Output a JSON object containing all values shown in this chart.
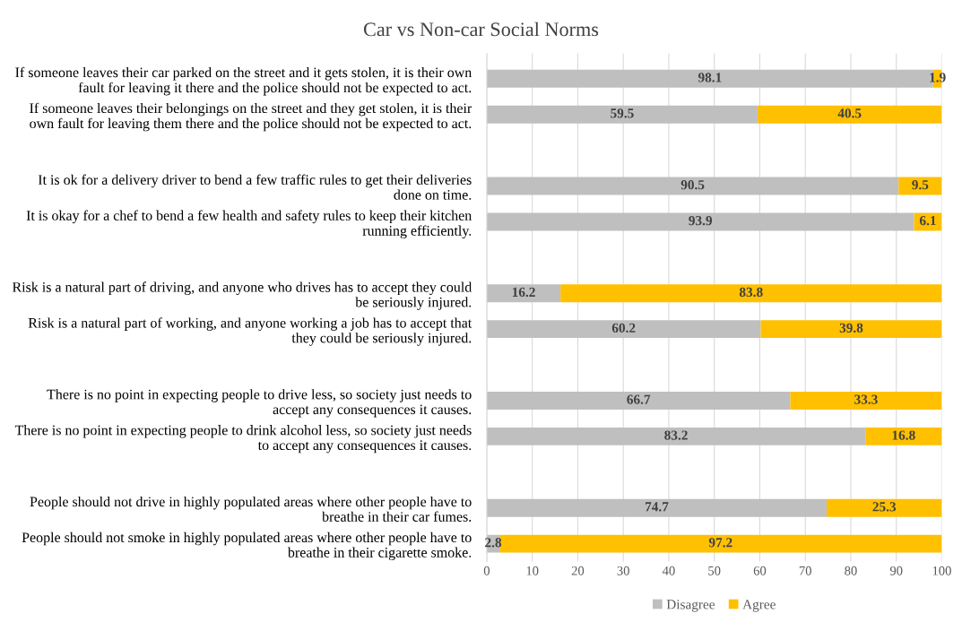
{
  "chart_data": {
    "type": "bar",
    "orientation": "horizontal",
    "stacked": true,
    "title": "Car vs Non-car Social Norms",
    "categories": [
      "If someone leaves their car parked on the street and it gets stolen, it is their own\nfault for leaving it there and the police should not be expected to act.",
      "If someone leaves their belongings on the street and they get stolen, it is their\nown fault for leaving them there and the police should not be expected to act.",
      null,
      "It is ok for a delivery driver to bend a few traffic rules to get their deliveries\ndone on time.",
      "It is okay for a chef to bend a few health and safety rules to keep their kitchen\nrunning efficiently.",
      null,
      "Risk is a natural part of driving, and anyone who drives has to accept they could\nbe seriously injured.",
      "Risk is a natural part of working, and anyone working a job has to accept that\nthey could be seriously injured.",
      null,
      "There is no point in expecting people to drive less, so society just needs to\naccept any consequences it causes.",
      "There is no point in expecting people to drink alcohol less, so society just needs\nto accept any consequences it causes.",
      null,
      "People should not drive in highly populated areas where other people have to\nbreathe in their car fumes.",
      "People should not smoke in highly populated areas where other people have to\nbreathe in their cigarette smoke."
    ],
    "series": [
      {
        "name": "Disagree",
        "color": "#bfbfbf",
        "values": [
          98.1,
          59.5,
          null,
          90.5,
          93.9,
          null,
          16.2,
          60.2,
          null,
          66.7,
          83.2,
          null,
          74.7,
          2.8
        ]
      },
      {
        "name": "Agree",
        "color": "#ffc000",
        "values": [
          1.9,
          40.5,
          null,
          9.5,
          6.1,
          null,
          83.8,
          39.8,
          null,
          33.3,
          16.8,
          null,
          25.3,
          97.2
        ]
      }
    ],
    "xlim": [
      0,
      100
    ],
    "xticks": [
      0,
      10,
      20,
      30,
      40,
      50,
      60,
      70,
      80,
      90,
      100
    ],
    "grid": "x",
    "legend": "bottom",
    "data_labels": true
  }
}
